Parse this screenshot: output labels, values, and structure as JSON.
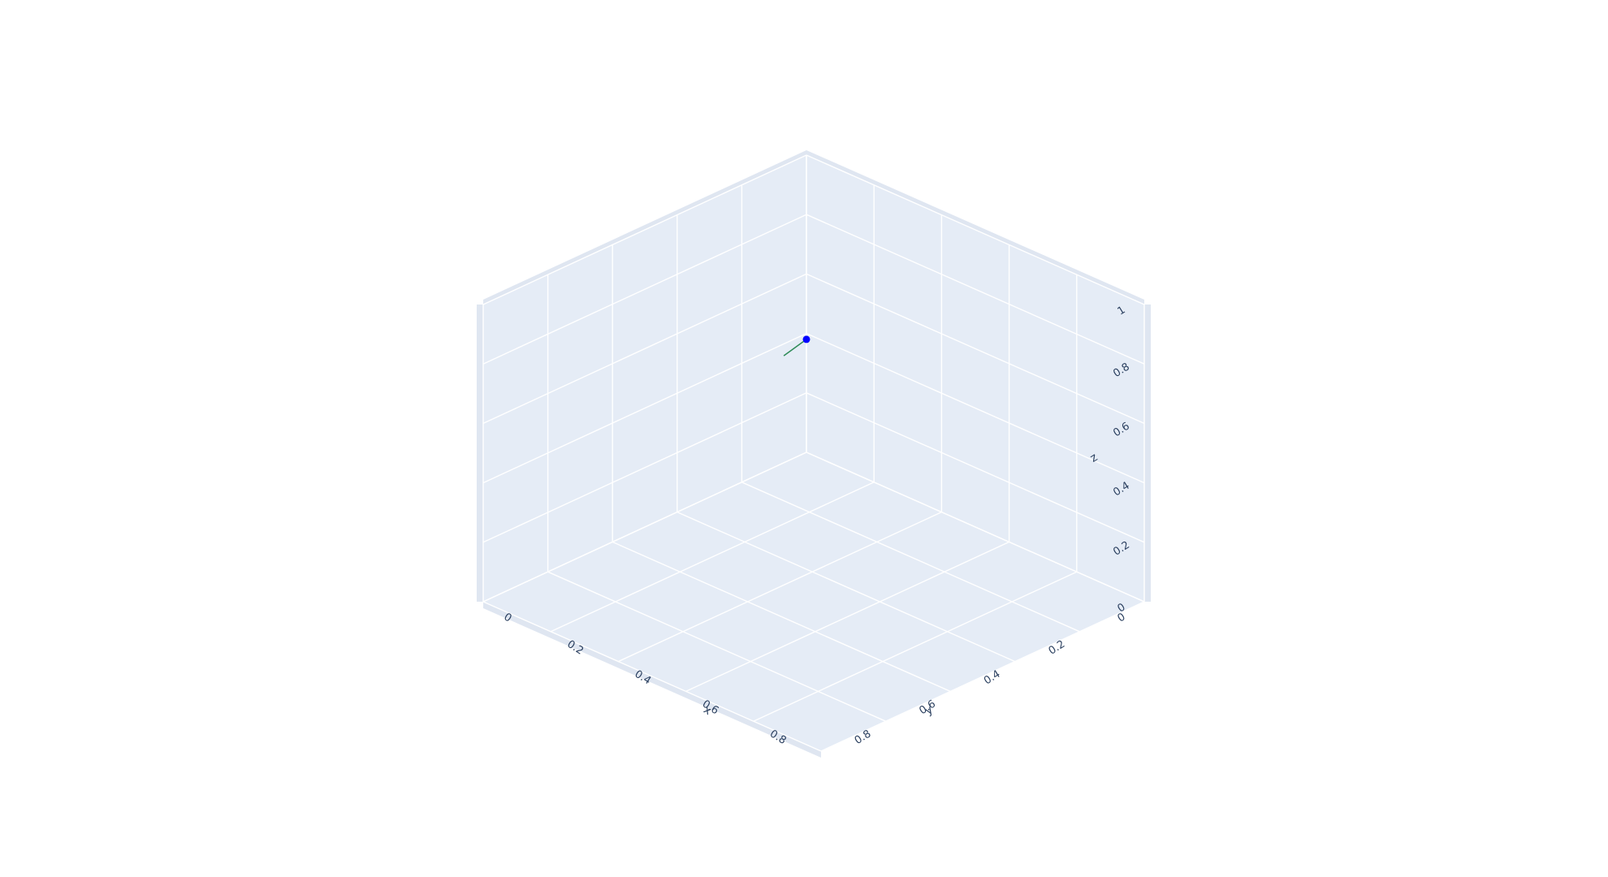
{
  "chart_data": {
    "type": "scatter3d",
    "axes": {
      "x": {
        "title": "x",
        "range": [
          0,
          1
        ],
        "ticks": [
          "0",
          "0.2",
          "0.4",
          "0.6",
          "0.8"
        ]
      },
      "y": {
        "title": "y",
        "range": [
          0,
          1
        ],
        "ticks": [
          "0",
          "0.2",
          "0.4",
          "0.6",
          "0.8"
        ]
      },
      "z": {
        "title": "z",
        "range": [
          0,
          1
        ],
        "ticks": [
          "0",
          "0.2",
          "0.4",
          "0.6",
          "0.8",
          "1"
        ]
      }
    },
    "grid": true,
    "series": [
      {
        "mode": "markers",
        "color": "#0000ff",
        "points": [
          {
            "x": 0,
            "y": 0,
            "z": 0.38
          }
        ]
      },
      {
        "mode": "lines",
        "color": "#2e8b57",
        "points": [
          {
            "x": 0,
            "y": 0,
            "z": 0.38
          },
          {
            "x": 0,
            "y": 0.07,
            "z": 0.36
          }
        ]
      }
    ],
    "colors": {
      "background": "#e5ecf6",
      "grid": "#ffffff",
      "text": "#2a3f5f"
    }
  }
}
